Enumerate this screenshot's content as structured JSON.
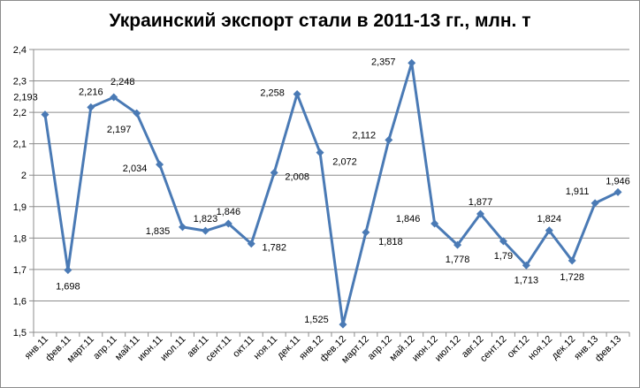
{
  "chart_data": {
    "type": "line",
    "title": "Украинский экспорт стали в 2011-13 гг., млн. т",
    "xlabel": "",
    "ylabel": "",
    "ylim": [
      1.5,
      2.4
    ],
    "yticks": [
      "1,5",
      "1,6",
      "1,7",
      "1,8",
      "1,9",
      "2",
      "2,1",
      "2,2",
      "2,3",
      "2,4"
    ],
    "grid": true,
    "legend": "none",
    "color": "#4a7ab5",
    "categories": [
      "янв.11",
      "фев.11",
      "март.11",
      "апр.11",
      "май.11",
      "июн.11",
      "июл.11",
      "авг.11",
      "сент.11",
      "окт.11",
      "ноя.11",
      "дек.11",
      "янв.12",
      "фев.12",
      "март.12",
      "апр.12",
      "май.12",
      "июн.12",
      "июл.12",
      "авг.12",
      "сент.12",
      "окт.12",
      "ноя.12",
      "дек.12",
      "янв.13",
      "фев.13"
    ],
    "values": [
      2.193,
      1.698,
      2.216,
      2.248,
      2.197,
      2.034,
      1.835,
      1.823,
      1.846,
      1.782,
      2.008,
      2.258,
      2.072,
      1.525,
      1.818,
      2.112,
      2.357,
      1.846,
      1.778,
      1.877,
      1.79,
      1.713,
      1.824,
      1.728,
      1.911,
      1.946
    ],
    "labels": [
      "2,193",
      "1,698",
      "2,216",
      "2,248",
      "2,197",
      "2,034",
      "1,835",
      "1,823",
      "1,846",
      "1,782",
      "2,008",
      "2,258",
      "2,072",
      "1,525",
      "1,818",
      "2,112",
      "2,357",
      "1,846",
      "1,778",
      "1,877",
      "1,79",
      "1,713",
      "1,824",
      "1,728",
      "1,911",
      "1,946"
    ]
  }
}
